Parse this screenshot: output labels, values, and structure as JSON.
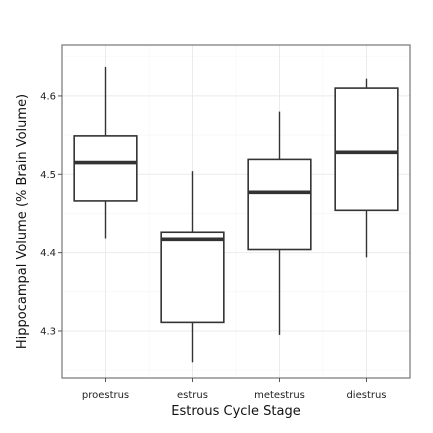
{
  "chart_data": {
    "type": "box",
    "title": "",
    "xlabel": "Estrous Cycle Stage",
    "ylabel": "Hippocampal Volume (% Brain Volume)",
    "ylim": [
      4.24,
      4.665
    ],
    "yticks": [
      4.3,
      4.4,
      4.5,
      4.6
    ],
    "ytick_labels": [
      "4.3",
      "4.4",
      "4.5",
      "4.6"
    ],
    "grid": true,
    "categories": [
      "proestrus",
      "estrus",
      "metestrus",
      "diestrus"
    ],
    "boxes": [
      {
        "category": "proestrus",
        "whisker_low": 4.418,
        "q1": 4.466,
        "median": 4.515,
        "q3": 4.549,
        "whisker_high": 4.637
      },
      {
        "category": "estrus",
        "whisker_low": 4.26,
        "q1": 4.311,
        "median": 4.417,
        "q3": 4.426,
        "whisker_high": 4.504
      },
      {
        "category": "metestrus",
        "whisker_low": 4.295,
        "q1": 4.404,
        "median": 4.477,
        "q3": 4.519,
        "whisker_high": 4.58
      },
      {
        "category": "diestrus",
        "whisker_low": 4.394,
        "q1": 4.454,
        "median": 4.528,
        "q3": 4.61,
        "whisker_high": 4.622
      }
    ],
    "colors": {
      "box_stroke": "#333333",
      "box_fill": "#ffffff",
      "panel_border": "#7f7f7f",
      "grid": "#ebebeb"
    }
  }
}
